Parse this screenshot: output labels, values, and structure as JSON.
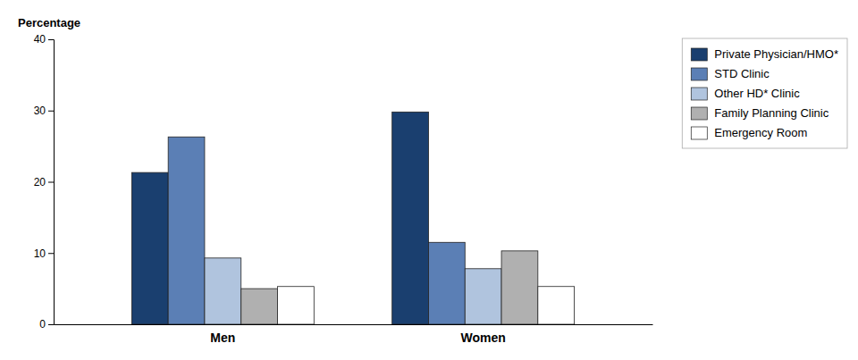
{
  "chart_data": {
    "type": "bar",
    "ylabel": "Percentage",
    "categories": [
      "Men",
      "Women"
    ],
    "series": [
      {
        "name": "Private Physician/HMO*",
        "color": "#1a3f6f",
        "values": [
          21.3,
          29.8
        ]
      },
      {
        "name": "STD Clinic",
        "color": "#5b7fb5",
        "values": [
          26.3,
          11.5
        ]
      },
      {
        "name": "Other HD* Clinic",
        "color": "#b0c4de",
        "values": [
          9.3,
          7.8
        ]
      },
      {
        "name": "Family Planning Clinic",
        "color": "#b0b0b0",
        "values": [
          5.0,
          10.3
        ]
      },
      {
        "name": "Emergency Room",
        "color": "#ffffff",
        "values": [
          5.3,
          5.3
        ]
      }
    ],
    "ylim": [
      0,
      40
    ],
    "yticks": [
      0,
      10,
      20,
      30,
      40
    ],
    "grid": false,
    "legend": "upper right"
  }
}
